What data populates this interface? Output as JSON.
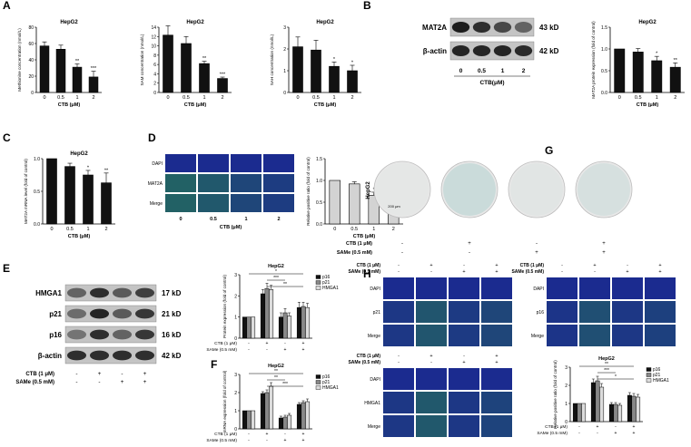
{
  "panel_letters": [
    "A",
    "B",
    "C",
    "D",
    "E",
    "F",
    "G",
    "H"
  ],
  "cell_line": "HepG2",
  "colors": {
    "bar_black": "#111111",
    "bar_gray": "#d3d3d3",
    "legend_p16": "#111111",
    "legend_p21": "#888888",
    "legend_hmga1": "#dcdcdc",
    "fluor_blue": "#1b2b8f",
    "fluor_green": "#2b9a3a",
    "plate": "#e8e8e8"
  },
  "chart_data": [
    {
      "id": "A1",
      "type": "bar",
      "title": "HepG2",
      "ylabel": "Methionine concentration (nmol/L)",
      "xlabel": "CTB (μM)",
      "categories": [
        "0",
        "0.5",
        "1",
        "2"
      ],
      "values": [
        57,
        53,
        31,
        19
      ],
      "errors": [
        5,
        5,
        4,
        7
      ],
      "sig": [
        "",
        "",
        "**",
        "***"
      ],
      "ylim": [
        0,
        80
      ],
      "yticks": [
        "0",
        "20",
        "40",
        "60",
        "80"
      ]
    },
    {
      "id": "A2",
      "type": "bar",
      "title": "HepG2",
      "ylabel": "SAM concentration (nmol/L)",
      "xlabel": "CTB (μM)",
      "categories": [
        "0",
        "0.5",
        "1",
        "2"
      ],
      "values": [
        12.3,
        10.5,
        6.2,
        3.0
      ],
      "errors": [
        2.0,
        1.5,
        0.5,
        0.3
      ],
      "sig": [
        "",
        "",
        "**",
        "***"
      ],
      "ylim": [
        0,
        14
      ],
      "yticks": [
        "0",
        "2",
        "4",
        "6",
        "8",
        "10",
        "12",
        "14"
      ]
    },
    {
      "id": "A3",
      "type": "bar",
      "title": "HepG2",
      "ylabel": "SAH concentration (nmol/L)",
      "xlabel": "CTB (μM)",
      "categories": [
        "0",
        "0.5",
        "1",
        "2"
      ],
      "values": [
        2.1,
        1.95,
        1.2,
        1.0
      ],
      "errors": [
        0.45,
        0.45,
        0.2,
        0.25
      ],
      "sig": [
        "",
        "",
        "*",
        "*"
      ],
      "ylim": [
        0,
        3
      ],
      "yticks": [
        "0",
        "1",
        "2",
        "3"
      ]
    },
    {
      "id": "B",
      "type": "bar",
      "title": "HepG2",
      "ylabel": "MAT2A protein expression (fold of control)",
      "xlabel": "CTB (μM)",
      "categories": [
        "0",
        "0.5",
        "1",
        "2"
      ],
      "values": [
        1.0,
        0.93,
        0.73,
        0.58
      ],
      "errors": [
        0.0,
        0.08,
        0.1,
        0.1
      ],
      "sig": [
        "",
        "",
        "*",
        "**"
      ],
      "ylim": [
        0,
        1.5
      ],
      "yticks": [
        "0.0",
        "0.5",
        "1.0",
        "1.5"
      ]
    },
    {
      "id": "C",
      "type": "bar",
      "title": "HepG2",
      "ylabel": "MAT2A mRNA level (fold of control)",
      "xlabel": "CTB (μM)",
      "categories": [
        "0",
        "0.5",
        "1",
        "2"
      ],
      "values": [
        1.0,
        0.88,
        0.75,
        0.63
      ],
      "errors": [
        0.0,
        0.05,
        0.07,
        0.15
      ],
      "sig": [
        "",
        "",
        "*",
        "**"
      ],
      "ylim": [
        0,
        1.0
      ],
      "yticks": [
        "0.0",
        "0.5",
        "1.0"
      ]
    },
    {
      "id": "D",
      "type": "bar",
      "title": "",
      "ylabel": "Relative positive ratio (fold of control)",
      "xlabel": "CTB (μM)",
      "categories": [
        "0",
        "0.5",
        "1",
        "2"
      ],
      "values": [
        1.0,
        0.92,
        0.66,
        0.43
      ],
      "errors": [
        0.0,
        0.05,
        0.07,
        0.1
      ],
      "sig": [
        "",
        "",
        "*",
        "**"
      ],
      "ylim": [
        0,
        1.5
      ],
      "yticks": [
        "0.0",
        "0.5",
        "1.0",
        "1.5"
      ],
      "gray": true
    },
    {
      "id": "E",
      "type": "bar",
      "title": "HepG2",
      "ylabel": "Protein expression (fold of control)",
      "groups": 4,
      "series": [
        {
          "name": "p16",
          "values": [
            1.0,
            2.1,
            1.0,
            1.45
          ],
          "errors": [
            0,
            0.2,
            0.2,
            0.25
          ]
        },
        {
          "name": "p21",
          "values": [
            1.0,
            2.35,
            1.2,
            1.5
          ],
          "errors": [
            0,
            0.25,
            0.2,
            0.2
          ]
        },
        {
          "name": "HMGA1",
          "values": [
            1.0,
            2.3,
            1.05,
            1.45
          ],
          "errors": [
            0,
            0.2,
            0.15,
            0.2
          ]
        }
      ],
      "ylim": [
        0,
        3
      ],
      "yticks": [
        "0",
        "1",
        "2",
        "3"
      ],
      "row1_label": "CTB (1 μM)",
      "row2_label": "SAMe (0.5 mM)",
      "row1": [
        "-",
        "+",
        "-",
        "+"
      ],
      "row2": [
        "-",
        "-",
        "+",
        "+"
      ],
      "sig": [
        "*",
        "***",
        "**"
      ]
    },
    {
      "id": "F",
      "type": "bar",
      "title": "HepG2",
      "ylabel": "mRNA expression (fold of control)",
      "groups": 4,
      "series": [
        {
          "name": "p16",
          "values": [
            1.0,
            1.95,
            0.6,
            1.35
          ],
          "errors": [
            0,
            0.1,
            0.1,
            0.1
          ]
        },
        {
          "name": "p21",
          "values": [
            1.0,
            2.0,
            0.65,
            1.45
          ],
          "errors": [
            0,
            0.15,
            0.1,
            0.1
          ]
        },
        {
          "name": "HMGA1",
          "values": [
            1.0,
            2.35,
            0.75,
            1.5
          ],
          "errors": [
            0,
            0.2,
            0.1,
            0.15
          ]
        }
      ],
      "ylim": [
        0,
        3
      ],
      "yticks": [
        "0",
        "1",
        "2",
        "3"
      ],
      "row1_label": "CTB (1 μM)",
      "row2_label": "SAMe (0.5 mM)",
      "row1": [
        "-",
        "+",
        "-",
        "+"
      ],
      "row2": [
        "-",
        "-",
        "+",
        "+"
      ],
      "sig": [
        "**",
        "**",
        "***"
      ]
    },
    {
      "id": "H",
      "type": "bar",
      "title": "HepG2",
      "ylabel": "Relative positive ratio (fold of control)",
      "groups": 4,
      "series": [
        {
          "name": "p16",
          "values": [
            1.0,
            2.15,
            0.95,
            1.45
          ],
          "errors": [
            0,
            0.2,
            0.1,
            0.15
          ]
        },
        {
          "name": "p21",
          "values": [
            1.0,
            2.25,
            0.95,
            1.4
          ],
          "errors": [
            0,
            0.25,
            0.1,
            0.15
          ]
        },
        {
          "name": "HMGA1",
          "values": [
            1.0,
            1.9,
            0.9,
            1.35
          ],
          "errors": [
            0,
            0.2,
            0.1,
            0.15
          ]
        }
      ],
      "ylim": [
        0,
        3
      ],
      "yticks": [
        "0",
        "1",
        "2",
        "3"
      ],
      "row1_label": "CTB (1 μM)",
      "row2_label": "SAMe (0.5 mM)",
      "row1": [
        "-",
        "+",
        "-",
        "+"
      ],
      "row2": [
        "-",
        "-",
        "+",
        "+"
      ],
      "sig": [
        "**",
        "***",
        "*"
      ]
    }
  ],
  "blot_B": {
    "labels": [
      "MAT2A",
      "β-actin"
    ],
    "kd": [
      "43 kD",
      "42 kD"
    ],
    "lanes": [
      "0",
      "0.5",
      "1",
      "2"
    ],
    "xlabel": "CTB(μM)",
    "intensity": [
      [
        0.95,
        0.85,
        0.7,
        0.55
      ],
      [
        0.9,
        0.9,
        0.9,
        0.88
      ]
    ]
  },
  "blot_E": {
    "labels": [
      "HMGA1",
      "p21",
      "p16",
      "β-actin"
    ],
    "kd": [
      "17 kD",
      "21 kD",
      "16 kD",
      "42 kD"
    ],
    "row1_label": "CTB (1 μM)",
    "row2_label": "SAMe (0.5 mM)",
    "row1": [
      "-",
      "+",
      "-",
      "+"
    ],
    "row2": [
      "-",
      "-",
      "+",
      "+"
    ],
    "intensity": [
      [
        0.55,
        0.85,
        0.6,
        0.75
      ],
      [
        0.5,
        0.9,
        0.6,
        0.8
      ],
      [
        0.45,
        0.85,
        0.55,
        0.8
      ],
      [
        0.85,
        0.85,
        0.85,
        0.85
      ]
    ]
  },
  "panel_D": {
    "rows": [
      "DAPI",
      "MAT2A",
      "Merge"
    ],
    "cols": [
      "0",
      "0.5",
      "1",
      "2"
    ],
    "xlabel": "CTB (μM)"
  },
  "panel_G": {
    "vlabel": "HepG2",
    "scale": "200 μm",
    "row1_label": "CTB (1 μM)",
    "row2_label": "SAMe (0.5 mM)",
    "row1": [
      "-",
      "+",
      "-",
      "+"
    ],
    "row2": [
      "-",
      "-",
      "+",
      "+"
    ],
    "stain": [
      0.05,
      0.5,
      0.1,
      0.3
    ]
  },
  "panel_H": {
    "row1_label": "CTB (1 μM)",
    "row2_label": "SAMe (0.5 mM)",
    "row1": [
      "-",
      "+",
      "-",
      "+"
    ],
    "row2": [
      "-",
      "-",
      "+",
      "+"
    ],
    "grid1_rows": [
      "DAPI",
      "p21",
      "Merge"
    ],
    "grid2_rows": [
      "DAPI",
      "p16",
      "Merge"
    ],
    "grid3_rows": [
      "DAPI",
      "HMGA1",
      "Merge"
    ]
  }
}
